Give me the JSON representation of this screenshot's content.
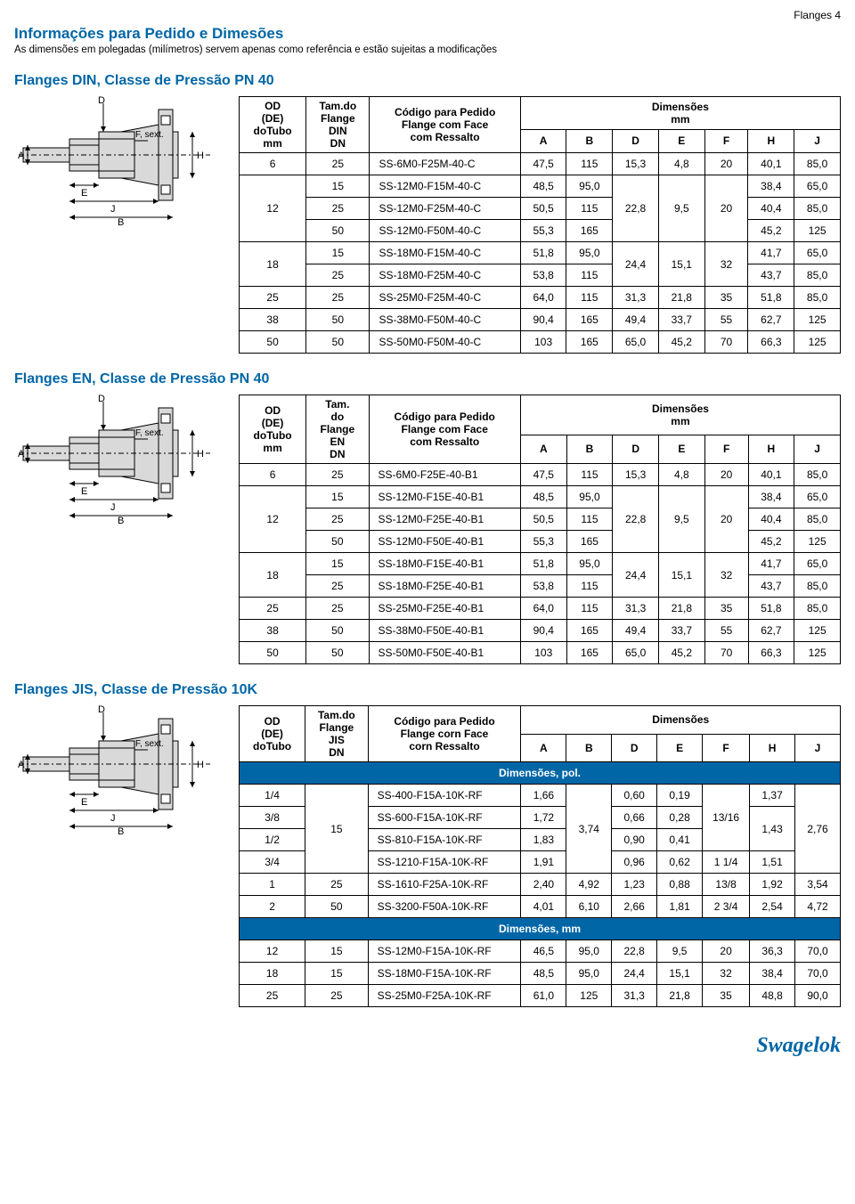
{
  "page_header": "Flanges  4",
  "title": "Informações para Pedido e Dimesões",
  "subtitle": "As dimensões em polegadas (milímetros) servem apenas como referência e estão sujeitas a modificações",
  "sections": [
    {
      "heading": "Flanges DIN, Classe de Pressão PN 40",
      "diagram_labels": {
        "A": "A",
        "B": "B",
        "D": "D",
        "E": "E",
        "F": "F, sext.",
        "H": "H",
        "J": "J"
      },
      "col_od": "OD (DE) doTubo mm",
      "col_flange": "Tam.do Flange DIN DN",
      "col_code": "Código para Pedido Flange com Face com Ressalto",
      "dims_header": "Dimensões mm",
      "dim_cols": [
        "A",
        "B",
        "D",
        "E",
        "F",
        "H",
        "J"
      ],
      "rows": [
        {
          "od": "6",
          "od_span": 1,
          "fl": "25",
          "fl_span": 1,
          "code": "SS-6M0-F25M-40-C",
          "A": "47,5",
          "B": "115",
          "D": "15,3",
          "D_span": 1,
          "E": "4,8",
          "E_span": 1,
          "F": "20",
          "F_span": 1,
          "H": "40,1",
          "J": "85,0"
        },
        {
          "od": "12",
          "od_span": 3,
          "fl": "15",
          "fl_span": 1,
          "code": "SS-12M0-F15M-40-C",
          "A": "48,5",
          "B": "95,0",
          "D": "22,8",
          "D_span": 3,
          "E": "9,5",
          "E_span": 3,
          "F": "20",
          "F_span": 3,
          "H": "38,4",
          "J": "65,0"
        },
        {
          "fl": "25",
          "fl_span": 1,
          "code": "SS-12M0-F25M-40-C",
          "A": "50,5",
          "B": "115",
          "H": "40,4",
          "J": "85,0"
        },
        {
          "fl": "50",
          "fl_span": 1,
          "code": "SS-12M0-F50M-40-C",
          "A": "55,3",
          "B": "165",
          "H": "45,2",
          "J": "125"
        },
        {
          "od": "18",
          "od_span": 2,
          "fl": "15",
          "fl_span": 1,
          "code": "SS-18M0-F15M-40-C",
          "A": "51,8",
          "B": "95,0",
          "D": "24,4",
          "D_span": 2,
          "E": "15,1",
          "E_span": 2,
          "F": "32",
          "F_span": 2,
          "H": "41,7",
          "J": "65,0"
        },
        {
          "fl": "25",
          "fl_span": 1,
          "code": "SS-18M0-F25M-40-C",
          "A": "53,8",
          "B": "115",
          "H": "43,7",
          "J": "85,0"
        },
        {
          "od": "25",
          "od_span": 1,
          "fl": "25",
          "fl_span": 1,
          "code": "SS-25M0-F25M-40-C",
          "A": "64,0",
          "B": "115",
          "D": "31,3",
          "D_span": 1,
          "E": "21,8",
          "E_span": 1,
          "F": "35",
          "F_span": 1,
          "H": "51,8",
          "J": "85,0"
        },
        {
          "od": "38",
          "od_span": 1,
          "fl": "50",
          "fl_span": 1,
          "code": "SS-38M0-F50M-40-C",
          "A": "90,4",
          "B": "165",
          "D": "49,4",
          "D_span": 1,
          "E": "33,7",
          "E_span": 1,
          "F": "55",
          "F_span": 1,
          "H": "62,7",
          "J": "125"
        },
        {
          "od": "50",
          "od_span": 1,
          "fl": "50",
          "fl_span": 1,
          "code": "SS-50M0-F50M-40-C",
          "A": "103",
          "B": "165",
          "D": "65,0",
          "D_span": 1,
          "E": "45,2",
          "E_span": 1,
          "F": "70",
          "F_span": 1,
          "H": "66,3",
          "J": "125"
        }
      ]
    },
    {
      "heading": "Flanges EN, Classe de Pressão PN 40",
      "diagram_labels": {
        "A": "A",
        "B": "B",
        "D": "D",
        "E": "E",
        "F": "F, sext.",
        "H": "H",
        "J": "J"
      },
      "col_od": "OD (DE) doTubo mm",
      "col_flange": "Tam. do Flange EN DN",
      "col_code": "Código para Pedido Flange com Face com Ressalto",
      "dims_header": "Dimensões mm",
      "dim_cols": [
        "A",
        "B",
        "D",
        "E",
        "F",
        "H",
        "J"
      ],
      "rows": [
        {
          "od": "6",
          "od_span": 1,
          "fl": "25",
          "fl_span": 1,
          "code": "SS-6M0-F25E-40-B1",
          "A": "47,5",
          "B": "115",
          "D": "15,3",
          "D_span": 1,
          "E": "4,8",
          "E_span": 1,
          "F": "20",
          "F_span": 1,
          "H": "40,1",
          "J": "85,0"
        },
        {
          "od": "12",
          "od_span": 3,
          "fl": "15",
          "fl_span": 1,
          "code": "SS-12M0-F15E-40-B1",
          "A": "48,5",
          "B": "95,0",
          "D": "22,8",
          "D_span": 3,
          "E": "9,5",
          "E_span": 3,
          "F": "20",
          "F_span": 3,
          "H": "38,4",
          "J": "65,0"
        },
        {
          "fl": "25",
          "fl_span": 1,
          "code": "SS-12M0-F25E-40-B1",
          "A": "50,5",
          "B": "115",
          "H": "40,4",
          "J": "85,0"
        },
        {
          "fl": "50",
          "fl_span": 1,
          "code": "SS-12M0-F50E-40-B1",
          "A": "55,3",
          "B": "165",
          "H": "45,2",
          "J": "125"
        },
        {
          "od": "18",
          "od_span": 2,
          "fl": "15",
          "fl_span": 1,
          "code": "SS-18M0-F15E-40-B1",
          "A": "51,8",
          "B": "95,0",
          "D": "24,4",
          "D_span": 2,
          "E": "15,1",
          "E_span": 2,
          "F": "32",
          "F_span": 2,
          "H": "41,7",
          "J": "65,0"
        },
        {
          "fl": "25",
          "fl_span": 1,
          "code": "SS-18M0-F25E-40-B1",
          "A": "53,8",
          "B": "115",
          "H": "43,7",
          "J": "85,0"
        },
        {
          "od": "25",
          "od_span": 1,
          "fl": "25",
          "fl_span": 1,
          "code": "SS-25M0-F25E-40-B1",
          "A": "64,0",
          "B": "115",
          "D": "31,3",
          "D_span": 1,
          "E": "21,8",
          "E_span": 1,
          "F": "35",
          "F_span": 1,
          "H": "51,8",
          "J": "85,0"
        },
        {
          "od": "38",
          "od_span": 1,
          "fl": "50",
          "fl_span": 1,
          "code": "SS-38M0-F50E-40-B1",
          "A": "90,4",
          "B": "165",
          "D": "49,4",
          "D_span": 1,
          "E": "33,7",
          "E_span": 1,
          "F": "55",
          "F_span": 1,
          "H": "62,7",
          "J": "125"
        },
        {
          "od": "50",
          "od_span": 1,
          "fl": "50",
          "fl_span": 1,
          "code": "SS-50M0-F50E-40-B1",
          "A": "103",
          "B": "165",
          "D": "65,0",
          "D_span": 1,
          "E": "45,2",
          "E_span": 1,
          "F": "70",
          "F_span": 1,
          "H": "66,3",
          "J": "125"
        }
      ]
    },
    {
      "heading": "Flanges JIS, Classe de Pressão 10K",
      "diagram_labels": {
        "A": "A",
        "B": "B",
        "D": "D",
        "E": "E",
        "F": "F, sext.",
        "H": "H",
        "J": "J"
      },
      "col_od": "OD (DE) doTubo",
      "col_flange": "Tam.do Flange JIS DN",
      "col_code": "Código para Pedido Flange corn Face corn Ressalto",
      "dims_header": "Dimensões",
      "dim_cols": [
        "A",
        "B",
        "D",
        "E",
        "F",
        "H",
        "J"
      ],
      "section_rows": {
        "0": "Dimensões, pol.",
        "7": "Dimensões, mm"
      },
      "rows": [
        {
          "od": "1/4",
          "od_span": 1,
          "fl": "15",
          "fl_span": 4,
          "code": "SS-400-F15A-10K-RF",
          "A": "1,66",
          "B": "3,74",
          "B_span": 4,
          "D": "0,60",
          "E": "0,19",
          "F": "13/16",
          "F_span": 4,
          "H": "1,37",
          "J": "2,76",
          "J_span": 4
        },
        {
          "od": "3/8",
          "od_span": 1,
          "code": "SS-600-F15A-10K-RF",
          "A": "1,72",
          "D": "0,66",
          "E": "0,28",
          "H": "1,43",
          "H_span": 3
        },
        {
          "od": "1/2",
          "od_span": 1,
          "code": "SS-810-F15A-10K-RF",
          "A": "1,83",
          "D": "0,90",
          "E": "0,41"
        },
        {
          "od": "3/4",
          "od_span": 1,
          "code": "SS-1210-F15A-10K-RF",
          "A": "1,91",
          "D": "0,96",
          "E": "0,62",
          "F": "1 1/4",
          "H": "1,51",
          "clear_F": true,
          "clear_H": true
        },
        {
          "od": "1",
          "od_span": 1,
          "fl": "25",
          "fl_span": 1,
          "code": "SS-1610-F25A-10K-RF",
          "A": "2,40",
          "B": "4,92",
          "D": "1,23",
          "E": "0,88",
          "F": "13/8",
          "H": "1,92",
          "J": "3,54"
        },
        {
          "od": "2",
          "od_span": 1,
          "fl": "50",
          "fl_span": 1,
          "code": "SS-3200-F50A-10K-RF",
          "A": "4,01",
          "B": "6,10",
          "D": "2,66",
          "E": "1,81",
          "F": "2 3/4",
          "H": "2,54",
          "J": "4,72"
        },
        {
          "od": "12",
          "od_span": 1,
          "fl": "15",
          "fl_span": 1,
          "code": "SS-12M0-F15A-10K-RF",
          "A": "46,5",
          "B": "95,0",
          "D": "22,8",
          "E": "9,5",
          "F": "20",
          "H": "36,3",
          "J": "70,0"
        },
        {
          "od": "18",
          "od_span": 1,
          "fl": "15",
          "fl_span": 1,
          "code": "SS-18M0-F15A-10K-RF",
          "A": "48,5",
          "B": "95,0",
          "D": "24,4",
          "E": "15,1",
          "F": "32",
          "H": "38,4",
          "J": "70,0"
        },
        {
          "od": "25",
          "od_span": 1,
          "fl": "25",
          "fl_span": 1,
          "code": "SS-25M0-F25A-10K-RF",
          "A": "61,0",
          "B": "125",
          "D": "31,3",
          "E": "21,8",
          "F": "35",
          "H": "48,8",
          "J": "90,0"
        }
      ]
    }
  ],
  "logo": "Swagelok",
  "colors": {
    "brand": "#0066a6",
    "text": "#000000",
    "border": "#000000",
    "bg": "#ffffff",
    "diagram_fill": "#d9d9d9"
  },
  "col_widths": {
    "od": 70,
    "flange": 65,
    "code": 170,
    "dim": 45
  }
}
